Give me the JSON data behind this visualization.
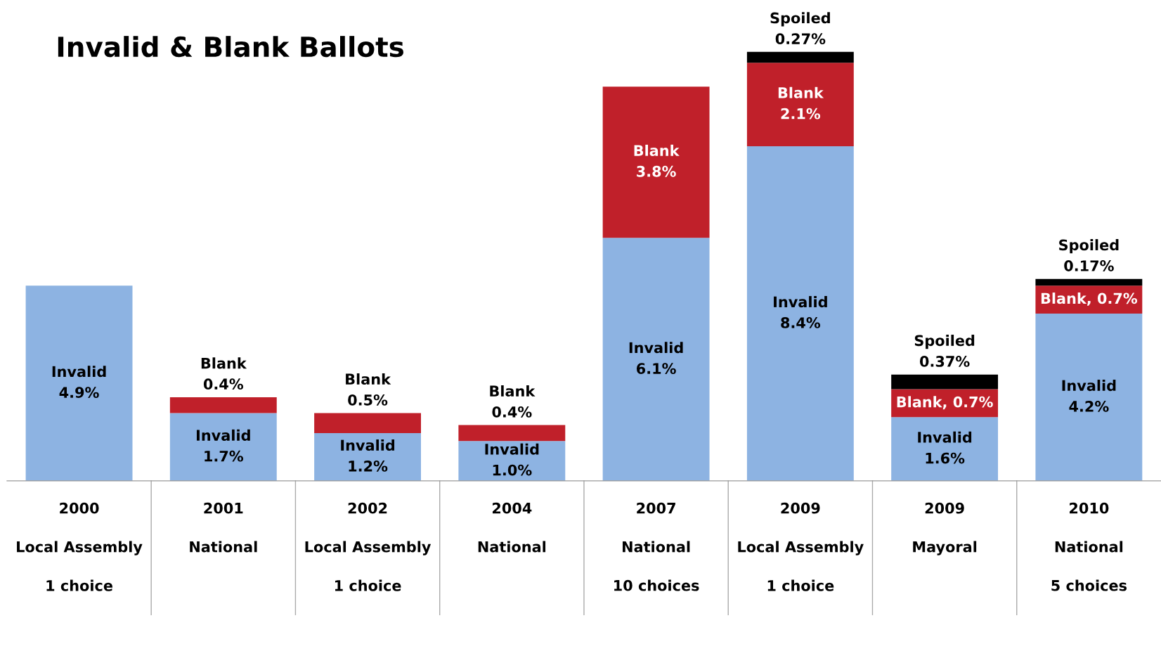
{
  "chart_data": {
    "type": "bar",
    "title": "Invalid & Blank Ballots",
    "stacked": true,
    "categories": [
      "2000\nLocal Assembly\n1 choice",
      "2001\nNational",
      "2002\nLocal Assembly\n1 choice",
      "2004\nNational",
      "2007\nNational\n10 choices",
      "2009\nLocal Assembly\n1 choice",
      "2009\nMayoral",
      "2010\nNational\n5 choices"
    ],
    "series": [
      {
        "color": "#8db3e2",
        "values": [
          4.9,
          1.7,
          1.2,
          1.0,
          6.1,
          8.4,
          1.6,
          4.2
        ],
        "value_labels": [
          "Invalid\n4.9%",
          "Invalid\n1.7%",
          "Invalid\n1.2%",
          "Invalid\n1.0%",
          "Invalid\n6.1%",
          "Invalid\n8.4%",
          "Invalid\n1.6%",
          "Invalid\n4.2%"
        ]
      },
      {
        "color": "#c0202a",
        "values": [
          null,
          0.4,
          0.5,
          0.4,
          3.8,
          2.1,
          0.7,
          0.7
        ],
        "value_labels": [
          null,
          "Blank\n0.4%",
          "Blank\n0.5%",
          "Blank\n0.4%",
          "Blank\n3.8%",
          "Blank\n2.1%",
          "Blank, 0.7%",
          "Blank, 0.7%"
        ]
      },
      {
        "color": "#000000",
        "values": [
          null,
          null,
          null,
          null,
          null,
          0.27,
          0.37,
          0.17
        ],
        "value_labels": [
          null,
          null,
          null,
          null,
          null,
          "Spoiled\n0.27%",
          "Spoiled\n0.37%",
          "Spoiled\n0.17%"
        ]
      }
    ],
    "grid": false,
    "legend": false
  }
}
